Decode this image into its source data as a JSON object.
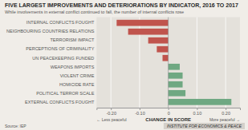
{
  "chart_data": {
    "type": "bar",
    "orientation": "horizontal",
    "title": "FIVE LARGEST IMPROVEMENTS AND DETERIORATIONS BY INDICATOR, 2016 TO 2017",
    "subtitle": "While involvements in external conflict continued to fall, the number of internal conflicts rose",
    "categories": [
      "INTERNAL CONFLICTS FOUGHT",
      "NEIGHBOURING COUNTRIES RELATIONS",
      "TERRORISM IMPACT",
      "PERCEPTIONS OF CRIMINALITY",
      "UN PEACEKEEPING FUNDED",
      "WEAPONS IMPORTS",
      "VIOLENT CRIME",
      "HOMICIDE RATE",
      "POLITICAL TERROR SCALE",
      "EXTERNAL CONFLICTS FOUGHT"
    ],
    "values": [
      -0.18,
      -0.14,
      -0.07,
      -0.04,
      -0.02,
      0.04,
      0.05,
      0.05,
      0.06,
      0.22
    ],
    "colors": [
      "#c0544d",
      "#c0544d",
      "#c0544d",
      "#c0544d",
      "#c0544d",
      "#6fa882",
      "#6fa882",
      "#6fa882",
      "#6fa882",
      "#6fa882"
    ],
    "xlabel": "CHANGE IN SCORE",
    "xlim": [
      -0.25,
      0.25
    ],
    "xticks": [
      {
        "value": -0.2,
        "label": "-0.20"
      },
      {
        "value": -0.1,
        "label": "-0.10"
      },
      0,
      {
        "value": 0.1,
        "label": "0.10"
      },
      {
        "value": 0.2,
        "label": "0.20"
      }
    ],
    "grid": true,
    "annotations": [
      "← Less peaceful",
      "More peaceful →"
    ],
    "source": "Source: IEP",
    "footer": "INSTITUTE FOR ECONOMICS & PEACE"
  }
}
